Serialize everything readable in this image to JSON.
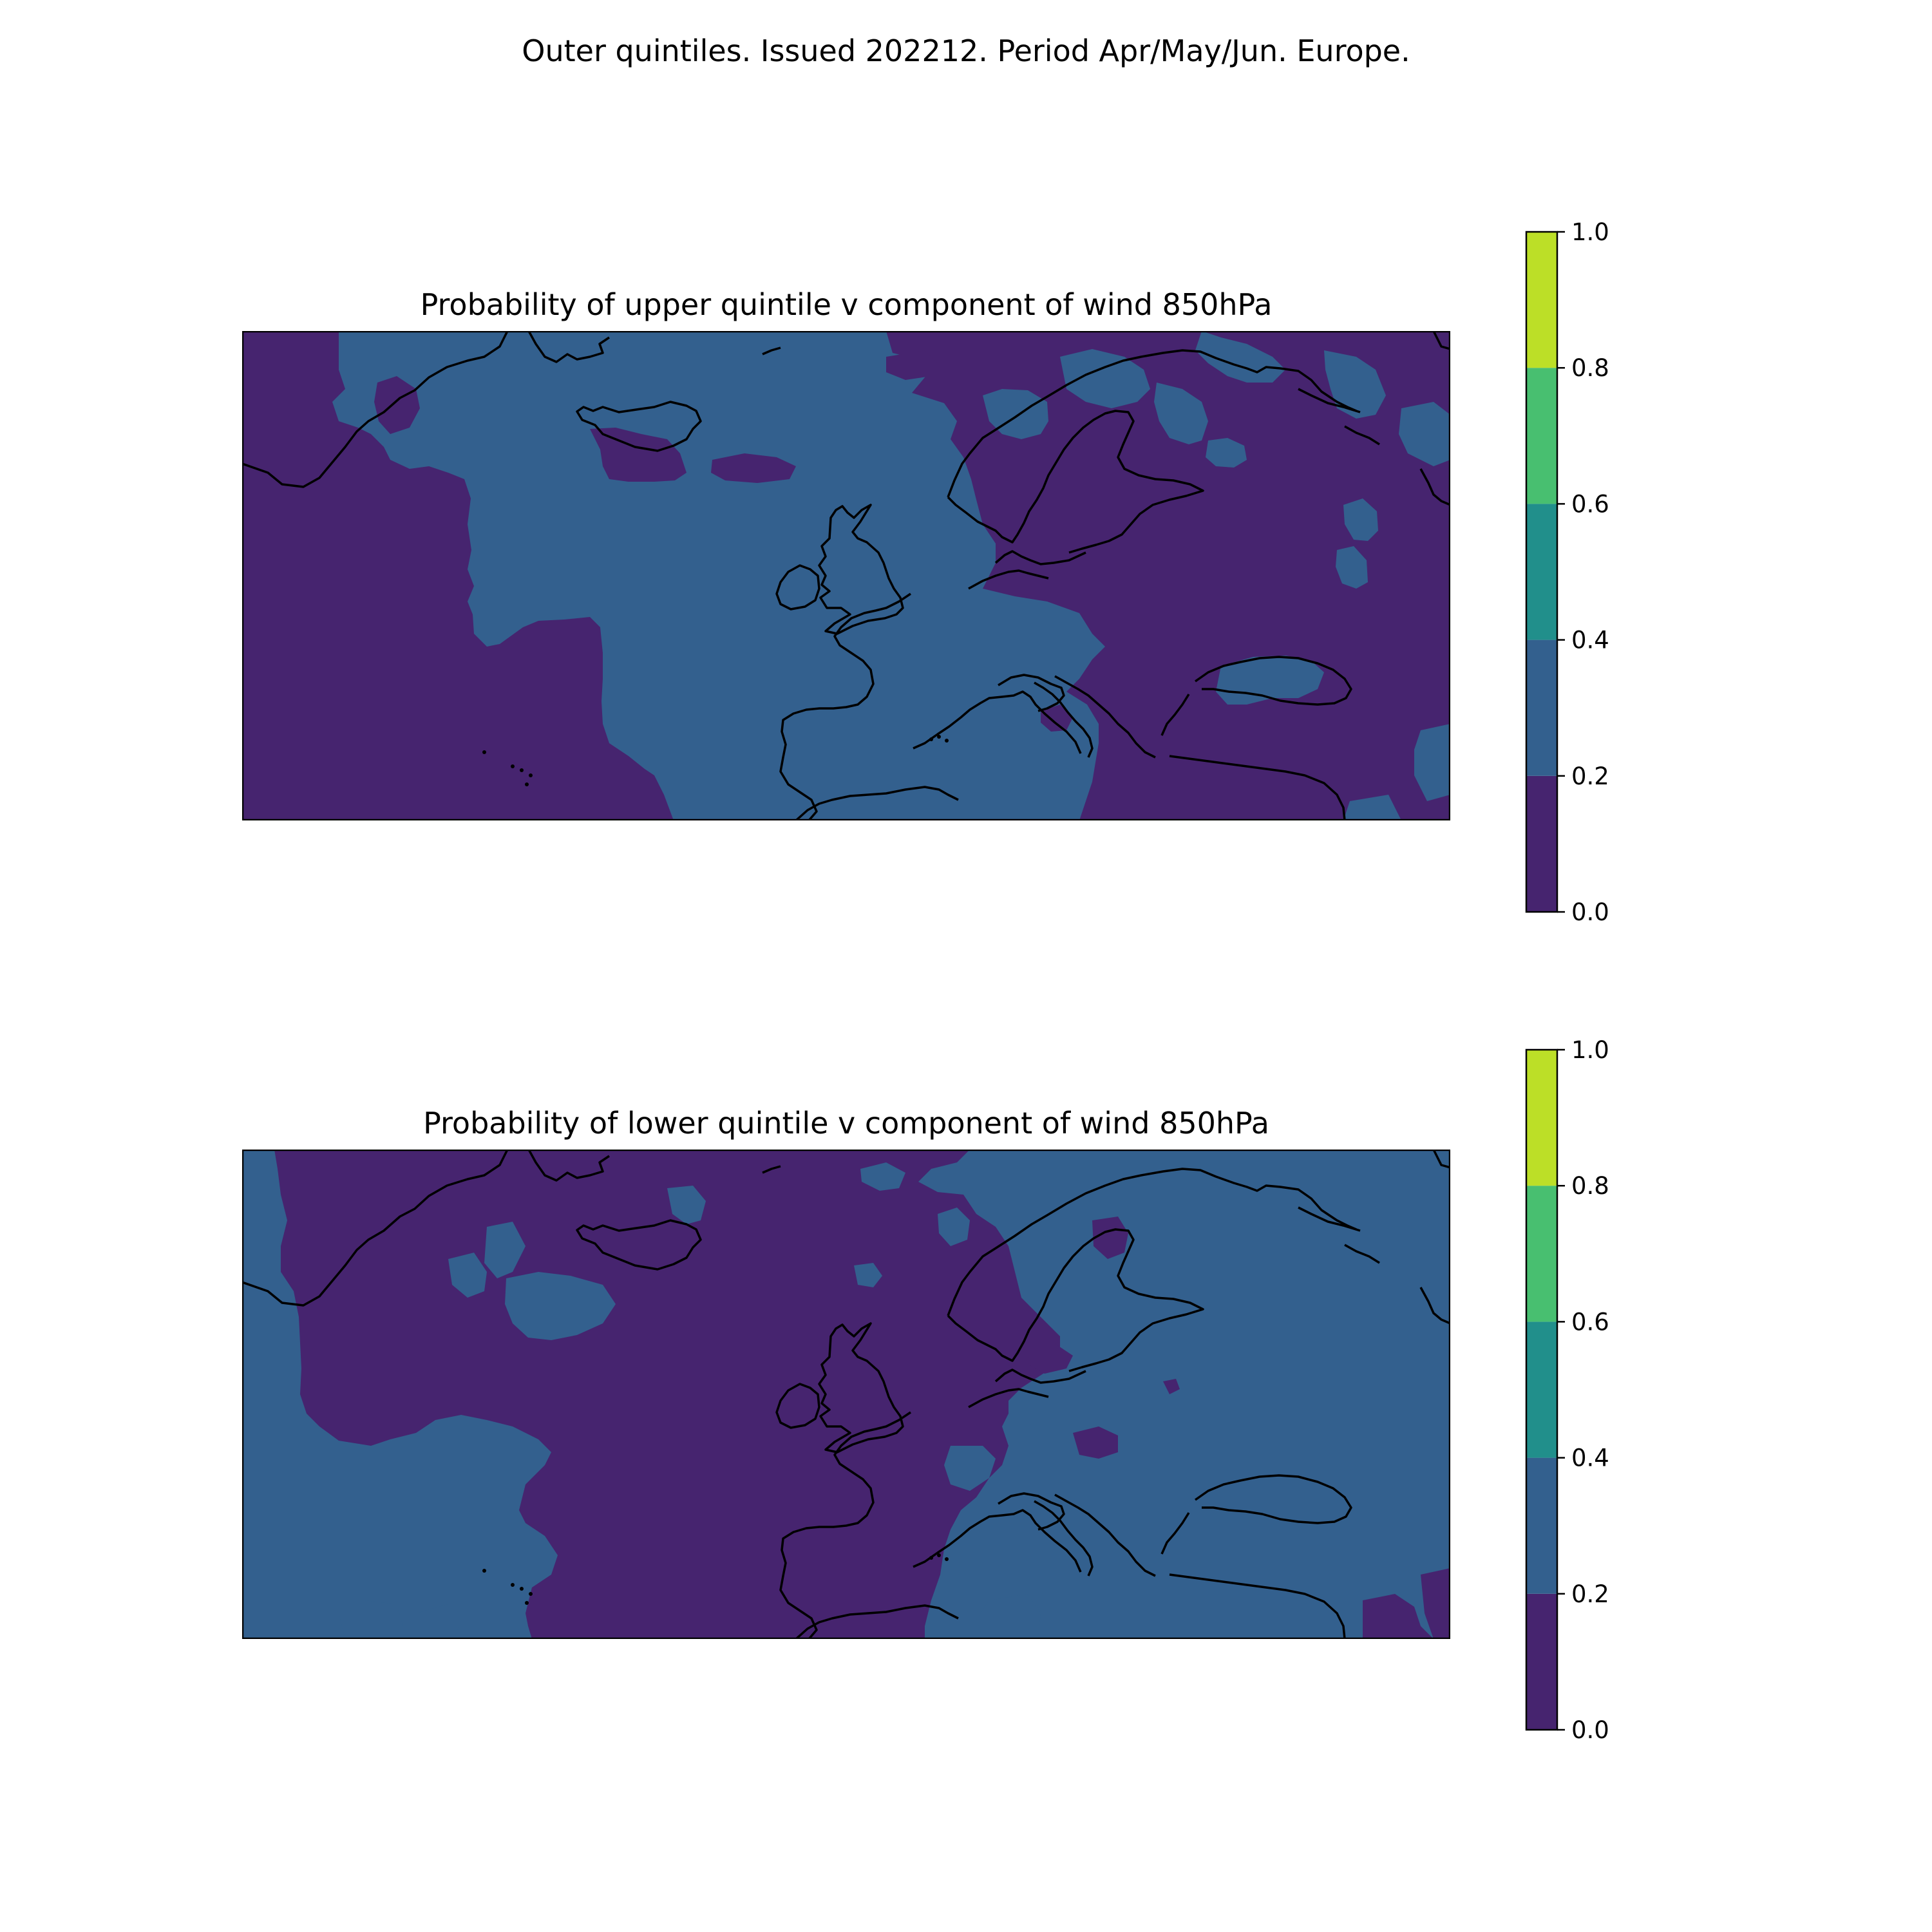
{
  "figure": {
    "suptitle": "Outer quintiles. Issued 202212. Period Apr/May/Jun. Europe."
  },
  "colormap": {
    "levels": [
      0.0,
      0.2,
      0.4,
      0.6,
      0.8,
      1.0
    ],
    "colors": [
      "#46246f",
      "#33608e",
      "#218f8b",
      "#48bf70",
      "#bcdf27"
    ],
    "tick_labels": [
      "0.0",
      "0.2",
      "0.4",
      "0.6",
      "0.8",
      "1.0"
    ]
  },
  "panels": [
    {
      "id": "upper",
      "title": "Probability of upper quintile v component of wind 850hPa",
      "background_class": "0.0–0.2",
      "dominant_classes": [
        "0.0–0.2",
        "0.2–0.4"
      ]
    },
    {
      "id": "lower",
      "title": "Probability of lower quintile v component of wind 850hPa",
      "background_class": "0.2–0.4",
      "dominant_classes": [
        "0.0–0.2",
        "0.2–0.4"
      ]
    }
  ]
}
